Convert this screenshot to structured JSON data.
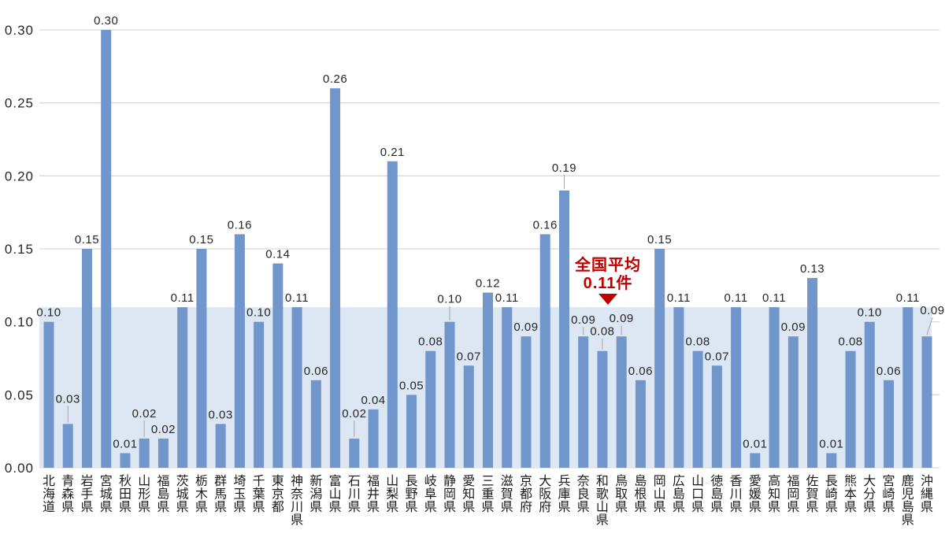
{
  "chart_data": {
    "type": "bar",
    "title": "",
    "xlabel": "",
    "ylabel": "",
    "categories": [
      "北海道",
      "青森県",
      "岩手県",
      "宮城県",
      "秋田県",
      "山形県",
      "福島県",
      "茨城県",
      "栃木県",
      "群馬県",
      "埼玉県",
      "千葉県",
      "東京都",
      "神奈川県",
      "新潟県",
      "富山県",
      "石川県",
      "福井県",
      "山梨県",
      "長野県",
      "岐阜県",
      "静岡県",
      "愛知県",
      "三重県",
      "滋賀県",
      "京都府",
      "大阪府",
      "兵庫県",
      "奈良県",
      "和歌山県",
      "鳥取県",
      "島根県",
      "岡山県",
      "広島県",
      "山口県",
      "徳島県",
      "香川県",
      "愛媛県",
      "高知県",
      "福岡県",
      "佐賀県",
      "長崎県",
      "熊本県",
      "大分県",
      "宮崎県",
      "鹿児島県",
      "沖縄県"
    ],
    "values": [
      0.1,
      0.03,
      0.15,
      0.3,
      0.01,
      0.02,
      0.02,
      0.11,
      0.15,
      0.03,
      0.16,
      0.1,
      0.14,
      0.11,
      0.06,
      0.26,
      0.02,
      0.04,
      0.21,
      0.05,
      0.08,
      0.1,
      0.07,
      0.12,
      0.11,
      0.09,
      0.16,
      0.19,
      0.09,
      0.08,
      0.09,
      0.06,
      0.15,
      0.11,
      0.08,
      0.07,
      0.11,
      0.01,
      0.11,
      0.09,
      0.13,
      0.01,
      0.08,
      0.1,
      0.06,
      0.11,
      0.09
    ],
    "ylim": [
      0,
      0.3
    ],
    "ytick_labels": [
      "0.00",
      "0.05",
      "0.10",
      "0.15",
      "0.20",
      "0.25",
      "0.30"
    ],
    "grid": true,
    "legend": "none",
    "average_band": {
      "value": 0.11,
      "annotation_line1": "全国平均",
      "annotation_line2": "0.11件"
    },
    "colors": {
      "bar": "#7096CB",
      "band": "#DCE7F3",
      "gridline": "#D9D9D9",
      "leader_line": "#A6A6A6",
      "annotation": "#C00000",
      "text": "#262626"
    }
  }
}
